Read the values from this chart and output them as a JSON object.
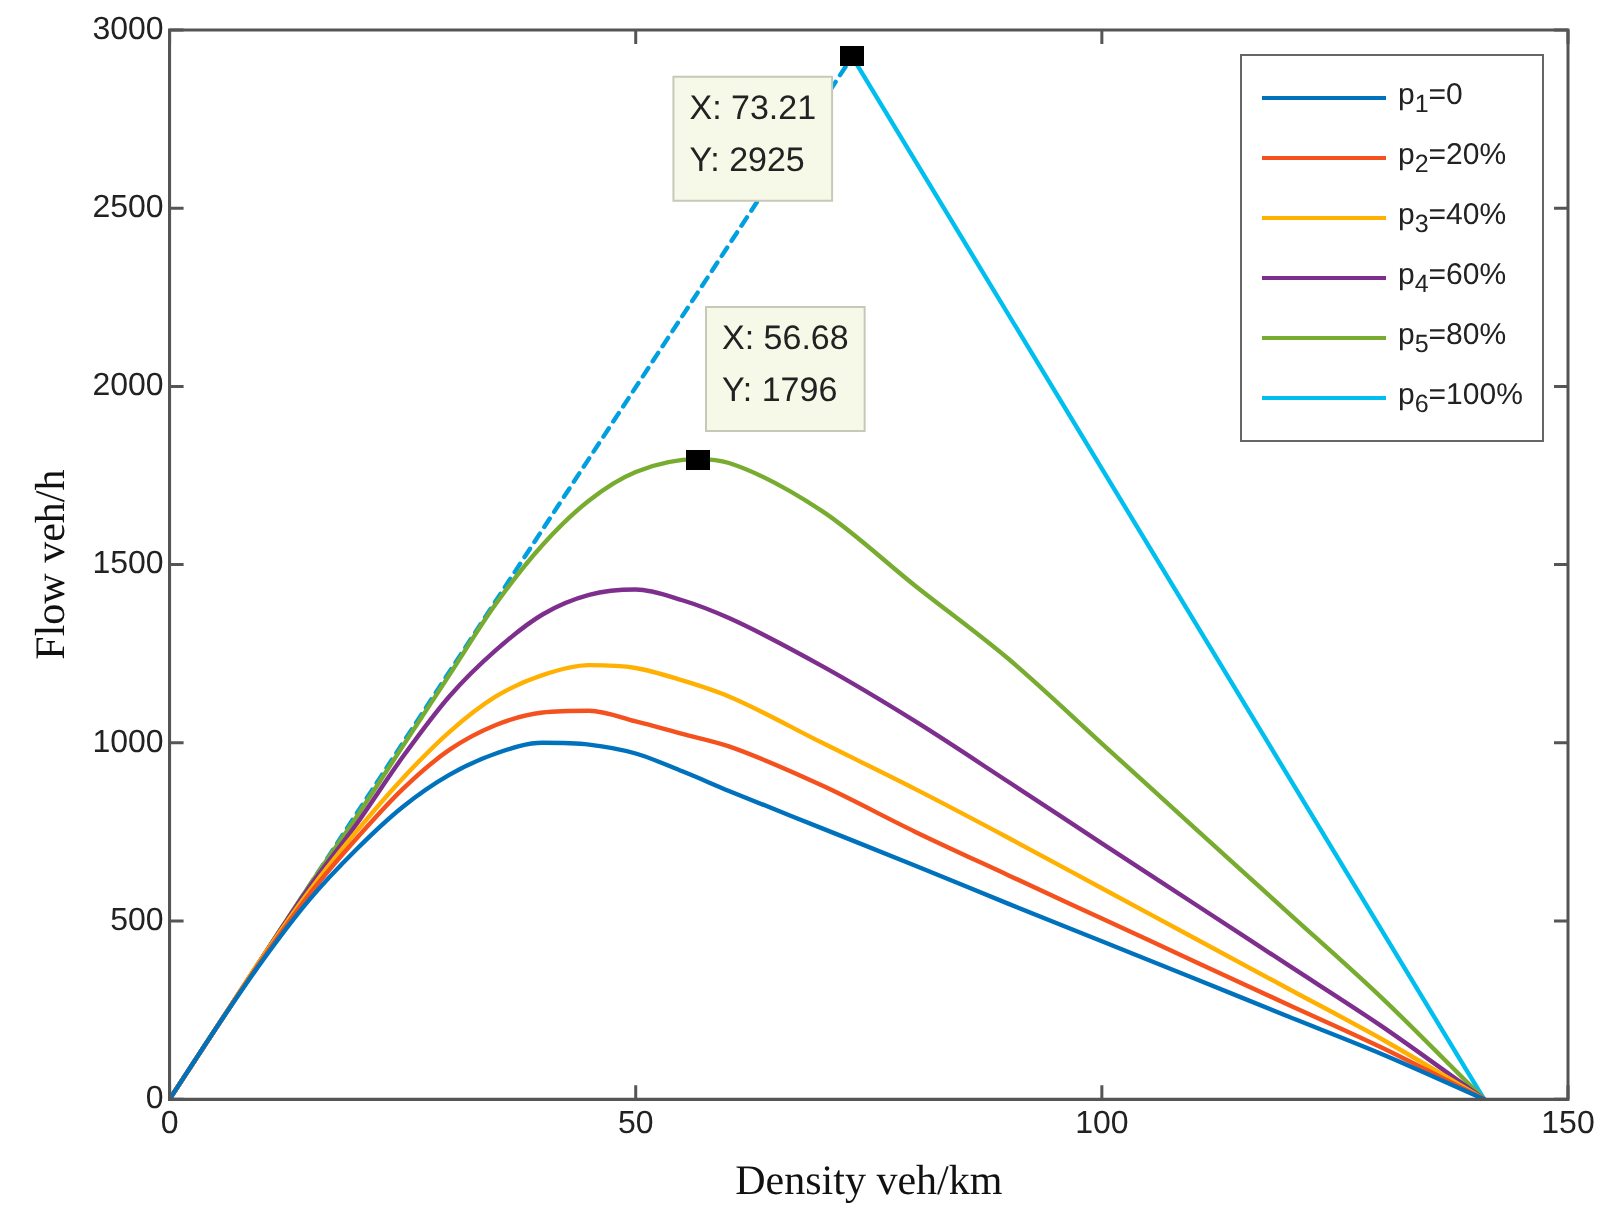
{
  "chart_data": {
    "type": "line",
    "xlabel": "Density veh/km",
    "ylabel": "Flow veh/h",
    "xlim": [
      0,
      150
    ],
    "ylim": [
      0,
      3000
    ],
    "xticks": [
      0,
      50,
      100,
      150
    ],
    "yticks": [
      0,
      500,
      1000,
      1500,
      2000,
      2500,
      3000
    ],
    "grid": false,
    "legend": "top right",
    "line_style": "solid",
    "series": [
      {
        "name": "p$_{1}$=0",
        "color": "#0072bd",
        "x": [
          0,
          5,
          10,
          15,
          20,
          25,
          30,
          35,
          40,
          45,
          50,
          55,
          60,
          70,
          80,
          90,
          100,
          110,
          120,
          130,
          141
        ],
        "values": [
          0,
          200,
          390,
          560,
          700,
          820,
          910,
          970,
          1000,
          995,
          970,
          920,
          865,
          760,
          655,
          548,
          443,
          338,
          232,
          127,
          0
        ]
      },
      {
        "name": "p$_{2}$=20%",
        "color": "#f4511e",
        "x": [
          0,
          5,
          10,
          15,
          20,
          25,
          30,
          35,
          40,
          45,
          50,
          55,
          60,
          70,
          80,
          90,
          100,
          110,
          120,
          130,
          141
        ],
        "values": [
          0,
          200,
          395,
          575,
          730,
          870,
          980,
          1050,
          1085,
          1090,
          1060,
          1025,
          990,
          880,
          750,
          628,
          507,
          386,
          265,
          145,
          0
        ]
      },
      {
        "name": "p$_{3}$=40%",
        "color": "#ffb000",
        "x": [
          0,
          5,
          10,
          15,
          20,
          25,
          30,
          35,
          40,
          45,
          50,
          55,
          60,
          70,
          80,
          90,
          100,
          110,
          120,
          130,
          141
        ],
        "values": [
          0,
          200,
          400,
          585,
          750,
          900,
          1030,
          1130,
          1190,
          1218,
          1210,
          1175,
          1130,
          1000,
          870,
          733,
          592,
          451,
          310,
          169,
          0
        ]
      },
      {
        "name": "p$_{4}$=60%",
        "color": "#7e2f8e",
        "x": [
          0,
          5,
          10,
          15,
          20,
          25,
          30,
          35,
          40,
          45,
          50,
          55,
          60,
          70,
          80,
          90,
          100,
          110,
          120,
          130,
          141
        ],
        "values": [
          0,
          200,
          400,
          595,
          770,
          960,
          1130,
          1260,
          1360,
          1415,
          1430,
          1400,
          1350,
          1215,
          1060,
          890,
          718,
          547,
          376,
          205,
          0
        ]
      },
      {
        "name": "p$_{5}$=80%",
        "color": "#77ac30",
        "x": [
          0,
          5,
          10,
          15,
          20,
          25,
          30,
          35,
          40,
          45,
          50,
          56.68,
          60,
          70,
          80,
          90,
          100,
          110,
          120,
          130,
          141
        ],
        "values": [
          0,
          200,
          400,
          600,
          790,
          990,
          1190,
          1390,
          1555,
          1680,
          1760,
          1796,
          1785,
          1650,
          1440,
          1235,
          998,
          760,
          523,
          285,
          0
        ]
      },
      {
        "name": "p$_{6}$=100%",
        "color": "#00bfef",
        "x": [
          73.21,
          141
        ],
        "values": [
          2925,
          0
        ]
      },
      {
        "color": "#00a0e0",
        "line_style": "dashed",
        "x": [
          0,
          73.21
        ],
        "values": [
          0,
          2925
        ]
      }
    ],
    "annotations": [
      {
        "text": "X: 73.21\nY: 2925",
        "x": 73.21,
        "y": 2925
      },
      {
        "text": "X: 56.68\nY: 1796",
        "x": 56.68,
        "y": 1796
      }
    ]
  }
}
